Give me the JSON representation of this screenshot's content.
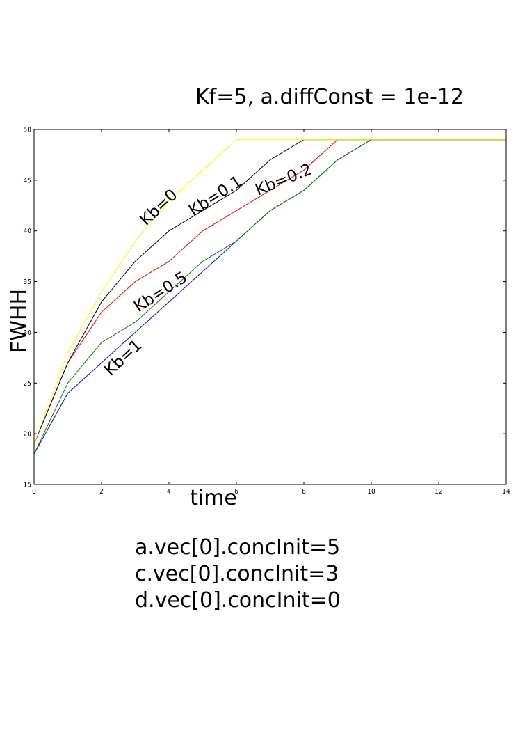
{
  "chart_data": {
    "type": "line",
    "title": "Kf=5, a.diffConst = 1e-12",
    "xlabel": "time",
    "ylabel": "FWHH",
    "xlim": [
      0,
      14
    ],
    "ylim": [
      15,
      50
    ],
    "xticks": [
      "0",
      "2",
      "4",
      "6",
      "8",
      "10",
      "12",
      "14"
    ],
    "yticks": [
      "15",
      "20",
      "25",
      "30",
      "35",
      "40",
      "45",
      "50"
    ],
    "grid": false,
    "legend": "none",
    "x": [
      0,
      1,
      2,
      3,
      4,
      5,
      6,
      7,
      8,
      9,
      10,
      11,
      12,
      13,
      14
    ],
    "series": [
      {
        "label": "Kb=1",
        "color": "#0000ff",
        "values": [
          18,
          24,
          27,
          30,
          33,
          36,
          39,
          42,
          44,
          47,
          49,
          49,
          49,
          49,
          49
        ]
      },
      {
        "label": "Kb=0.5",
        "color": "#008000",
        "values": [
          18,
          25,
          29,
          31,
          34,
          37,
          39,
          42,
          44,
          47,
          49,
          49,
          49,
          49,
          49
        ]
      },
      {
        "label": "Kb=0.2",
        "color": "#ff0000",
        "values": [
          19,
          27,
          32,
          35,
          37,
          40,
          42,
          44,
          46,
          49,
          49,
          49,
          49,
          49,
          49
        ]
      },
      {
        "label": "Kb=0.1",
        "color": "#000000",
        "values": [
          19,
          27,
          33,
          37,
          40,
          42,
          44,
          47,
          49,
          49,
          49,
          49,
          49,
          49,
          49
        ]
      },
      {
        "label": "Kb=0",
        "color": "#ffff00",
        "values": [
          19,
          28,
          34,
          39,
          43,
          46,
          49,
          49,
          49,
          49,
          49,
          49,
          49,
          49,
          49
        ]
      }
    ],
    "annotations": [
      "Kb=0",
      "Kb=0.1",
      "Kb=0.2",
      "Kb=0.5",
      "Kb=1"
    ]
  },
  "notes": [
    "a.vec[0].concInit=5",
    "c.vec[0].concInit=3",
    "d.vec[0].concInit=0"
  ]
}
